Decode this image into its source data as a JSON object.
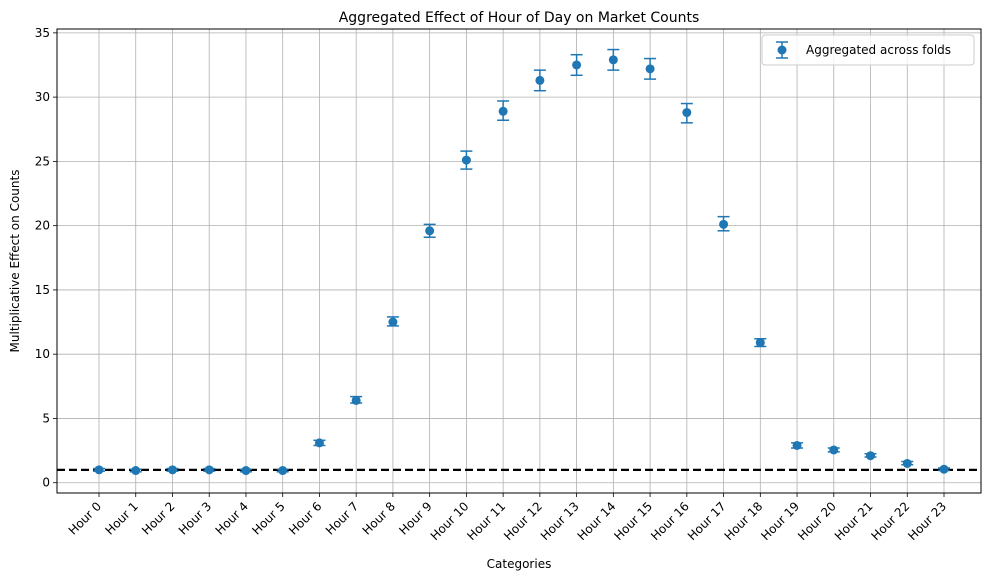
{
  "chart_data": {
    "type": "scatter",
    "title": "Aggregated Effect of Hour of Day on Market Counts",
    "xlabel": "Categories",
    "ylabel": "Multiplicative Effect on Counts",
    "categories": [
      "Hour 0",
      "Hour 1",
      "Hour 2",
      "Hour 3",
      "Hour 4",
      "Hour 5",
      "Hour 6",
      "Hour 7",
      "Hour 8",
      "Hour 9",
      "Hour 10",
      "Hour 11",
      "Hour 12",
      "Hour 13",
      "Hour 14",
      "Hour 15",
      "Hour 16",
      "Hour 17",
      "Hour 18",
      "Hour 19",
      "Hour 20",
      "Hour 21",
      "Hour 22",
      "Hour 23"
    ],
    "yticks": [
      0,
      5,
      10,
      15,
      20,
      25,
      30,
      35
    ],
    "ylim": [
      -0.8,
      35.3
    ],
    "grid": true,
    "legend_position": "top-right",
    "reference_line": {
      "y": 1.0,
      "style": "dashed",
      "color": "#000000"
    },
    "series": [
      {
        "name": "Aggregated across folds",
        "color": "#1f77b4",
        "values": [
          1.0,
          0.95,
          1.0,
          1.0,
          0.95,
          0.95,
          3.1,
          6.4,
          12.5,
          19.6,
          25.1,
          28.9,
          31.3,
          32.5,
          32.9,
          32.2,
          28.8,
          20.1,
          10.9,
          2.9,
          2.55,
          2.1,
          1.5,
          1.05
        ],
        "err_low": [
          0.9,
          0.85,
          0.9,
          0.9,
          0.85,
          0.85,
          2.9,
          6.2,
          12.2,
          19.1,
          24.4,
          28.2,
          30.5,
          31.7,
          32.1,
          31.4,
          28.0,
          19.6,
          10.6,
          2.7,
          2.4,
          2.0,
          1.4,
          0.95
        ],
        "err_high": [
          1.1,
          1.05,
          1.1,
          1.1,
          1.05,
          1.05,
          3.3,
          6.7,
          12.9,
          20.1,
          25.8,
          29.7,
          32.1,
          33.3,
          33.7,
          33.0,
          29.5,
          20.7,
          11.2,
          3.1,
          2.7,
          2.25,
          1.65,
          1.15
        ]
      }
    ]
  }
}
